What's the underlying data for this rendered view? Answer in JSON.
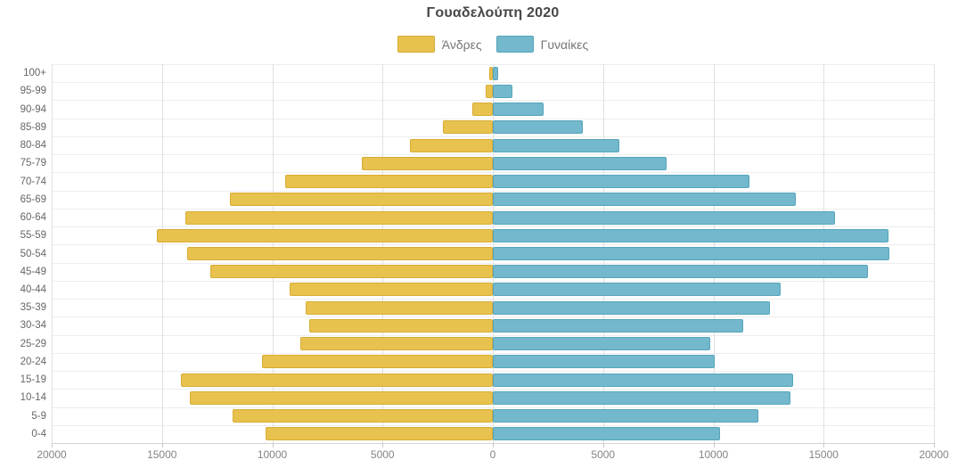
{
  "title": "Γουαδελούπη 2020",
  "legend": {
    "male_label": "Άνδρες",
    "female_label": "Γυναίκες"
  },
  "colors": {
    "male_fill": "#e8c24e",
    "male_border": "#d8ac35",
    "female_fill": "#73b8cc",
    "female_border": "#55a5bc",
    "grid": "#e0e0e0",
    "axis_text": "#848484",
    "category_text": "#666666",
    "title_text": "#474747"
  },
  "chart_data": {
    "type": "bar",
    "subtype": "population-pyramid",
    "title": "Γουαδελούπη 2020",
    "legend_position": "top",
    "grid": true,
    "x_axis": {
      "tick_labels": [
        "20000",
        "15000",
        "10000",
        "5000",
        "0",
        "5000",
        "10000",
        "15000",
        "20000"
      ],
      "tick_values": [
        -20000,
        -15000,
        -10000,
        -5000,
        0,
        5000,
        10000,
        15000,
        20000
      ],
      "max_abs": 20000
    },
    "categories": [
      "100+",
      "95-99",
      "90-94",
      "85-89",
      "80-84",
      "75-79",
      "70-74",
      "65-69",
      "60-64",
      "55-59",
      "50-54",
      "45-49",
      "40-44",
      "35-39",
      "30-34",
      "25-29",
      "20-24",
      "15-19",
      "10-14",
      "5-9",
      "0-4"
    ],
    "series": [
      {
        "name": "Άνδρες",
        "side": "left",
        "values": [
          150,
          310,
          930,
          2260,
          3760,
          5940,
          9400,
          11900,
          13950,
          15250,
          13850,
          12800,
          9200,
          8480,
          8320,
          8720,
          10460,
          14130,
          13730,
          11790,
          10300
        ]
      },
      {
        "name": "Γυναίκες",
        "side": "right",
        "values": [
          260,
          890,
          2300,
          4080,
          5740,
          7880,
          11630,
          13730,
          15510,
          17940,
          17980,
          17010,
          13050,
          12560,
          11350,
          9860,
          10060,
          13610,
          13490,
          12040,
          10300
        ]
      }
    ]
  }
}
